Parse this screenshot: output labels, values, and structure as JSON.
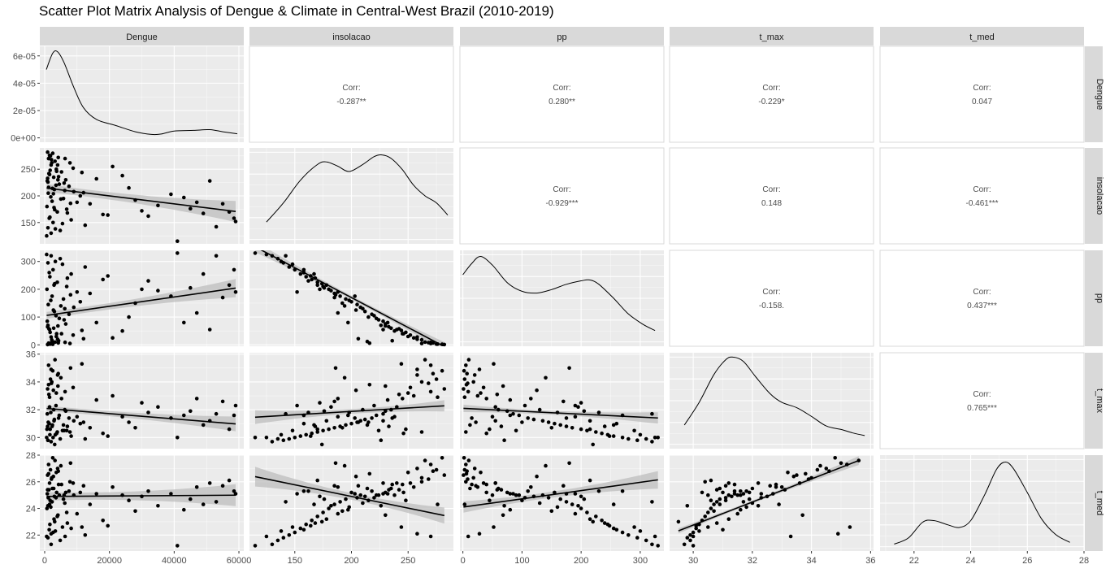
{
  "title": "Scatter Plot Matrix Analysis of Dengue & Climate in Central-West Brazil (2010-2019)",
  "colors": {
    "panel_bg": "#EBEBEB",
    "strip_bg": "#D9D9D9",
    "points": "#000000",
    "ribbon": "#BEBEBE"
  },
  "chart_data": {
    "type": "scatter-matrix",
    "variables": [
      "Dengue",
      "insolacao",
      "pp",
      "t_max",
      "t_med"
    ],
    "axes": [
      {
        "name": "Dengue",
        "range": [
          -1500,
          61500
        ],
        "ticks": [
          0,
          20000,
          40000,
          60000
        ],
        "tick_labels": [
          "0",
          "20000",
          "40000",
          "60000"
        ],
        "density_axis": {
          "range": [
            -3.2e-06,
            6.7e-05
          ],
          "ticks": [
            0,
            2e-05,
            4e-05,
            6e-05
          ],
          "tick_labels": [
            "0e+00",
            "2e-05",
            "4e-05",
            "6e-05"
          ]
        }
      },
      {
        "name": "insolacao",
        "range": [
          110,
          290
        ],
        "ticks": [
          150,
          200,
          250
        ],
        "tick_labels": [
          "150",
          "200",
          "250"
        ]
      },
      {
        "name": "pp",
        "range": [
          -5,
          340
        ],
        "ticks": [
          0,
          100,
          200,
          300
        ],
        "tick_labels": [
          "0",
          "100",
          "200",
          "300"
        ]
      },
      {
        "name": "t_max",
        "range": [
          29.2,
          36.1
        ],
        "ticks": [
          30,
          32,
          34,
          36
        ],
        "tick_labels": [
          "30",
          "32",
          "34",
          "36"
        ]
      },
      {
        "name": "t_med",
        "range": [
          20.8,
          28
        ],
        "ticks": [
          22,
          24,
          26,
          28
        ],
        "tick_labels": [
          "22",
          "24",
          "26",
          "28"
        ]
      }
    ],
    "correlations": [
      {
        "row": "Dengue",
        "col": "insolacao",
        "label": "Corr:",
        "value": "-0.287**"
      },
      {
        "row": "Dengue",
        "col": "pp",
        "label": "Corr:",
        "value": "0.280**"
      },
      {
        "row": "Dengue",
        "col": "t_max",
        "label": "Corr:",
        "value": "-0.229*"
      },
      {
        "row": "Dengue",
        "col": "t_med",
        "label": "Corr:",
        "value": "0.047"
      },
      {
        "row": "insolacao",
        "col": "pp",
        "label": "Corr:",
        "value": "-0.929***"
      },
      {
        "row": "insolacao",
        "col": "t_max",
        "label": "Corr:",
        "value": "0.148"
      },
      {
        "row": "insolacao",
        "col": "t_med",
        "label": "Corr:",
        "value": "-0.461***"
      },
      {
        "row": "pp",
        "col": "t_max",
        "label": "Corr:",
        "value": "-0.158."
      },
      {
        "row": "pp",
        "col": "t_med",
        "label": "Corr:",
        "value": "0.437***"
      },
      {
        "row": "t_max",
        "col": "t_med",
        "label": "Corr:",
        "value": "0.765***"
      }
    ],
    "densities": {
      "Dengue": [
        [
          500,
          5e-05
        ],
        [
          2500,
          6.2e-05
        ],
        [
          4000,
          6.3e-05
        ],
        [
          6000,
          5.5e-05
        ],
        [
          9000,
          3.7e-05
        ],
        [
          12000,
          2.2e-05
        ],
        [
          16000,
          1.35e-05
        ],
        [
          22000,
          9e-06
        ],
        [
          28000,
          4.5e-06
        ],
        [
          33000,
          2.5e-06
        ],
        [
          36000,
          2.8e-06
        ],
        [
          40000,
          5e-06
        ],
        [
          46000,
          5.5e-06
        ],
        [
          51000,
          6e-06
        ],
        [
          55000,
          4.5e-06
        ],
        [
          59500,
          3e-06
        ]
      ],
      "insolacao": [
        [
          125,
          0.2
        ],
        [
          140,
          0.42
        ],
        [
          155,
          0.68
        ],
        [
          170,
          0.86
        ],
        [
          178,
          0.89
        ],
        [
          188,
          0.84
        ],
        [
          198,
          0.78
        ],
        [
          210,
          0.86
        ],
        [
          220,
          0.95
        ],
        [
          227,
          0.97
        ],
        [
          235,
          0.93
        ],
        [
          245,
          0.8
        ],
        [
          255,
          0.62
        ],
        [
          265,
          0.5
        ],
        [
          275,
          0.42
        ],
        [
          285,
          0.28
        ]
      ],
      "pp": [
        [
          0,
          0.77
        ],
        [
          15,
          0.9
        ],
        [
          30,
          0.98
        ],
        [
          50,
          0.88
        ],
        [
          75,
          0.68
        ],
        [
          100,
          0.58
        ],
        [
          125,
          0.56
        ],
        [
          150,
          0.6
        ],
        [
          175,
          0.66
        ],
        [
          200,
          0.7
        ],
        [
          215,
          0.71
        ],
        [
          230,
          0.66
        ],
        [
          255,
          0.5
        ],
        [
          280,
          0.32
        ],
        [
          305,
          0.2
        ],
        [
          325,
          0.13
        ]
      ],
      "t_max": [
        [
          29.7,
          0.22
        ],
        [
          30.2,
          0.48
        ],
        [
          30.7,
          0.8
        ],
        [
          31.1,
          0.97
        ],
        [
          31.35,
          1.0
        ],
        [
          31.7,
          0.95
        ],
        [
          32.1,
          0.78
        ],
        [
          32.6,
          0.58
        ],
        [
          33.0,
          0.48
        ],
        [
          33.5,
          0.42
        ],
        [
          34.0,
          0.32
        ],
        [
          34.5,
          0.21
        ],
        [
          35.0,
          0.17
        ],
        [
          35.4,
          0.13
        ],
        [
          35.8,
          0.1
        ]
      ],
      "t_med": [
        [
          21.3,
          0.03
        ],
        [
          21.8,
          0.1
        ],
        [
          22.3,
          0.28
        ],
        [
          22.7,
          0.3
        ],
        [
          23.2,
          0.25
        ],
        [
          23.6,
          0.22
        ],
        [
          24.0,
          0.3
        ],
        [
          24.5,
          0.6
        ],
        [
          24.9,
          0.88
        ],
        [
          25.2,
          0.97
        ],
        [
          25.5,
          0.9
        ],
        [
          26.0,
          0.62
        ],
        [
          26.5,
          0.32
        ],
        [
          27.0,
          0.14
        ],
        [
          27.5,
          0.05
        ]
      ]
    },
    "observations": [
      {
        "Dengue": 1200,
        "insolacao": 270,
        "pp": 5,
        "t_max": 35.2,
        "t_med": 27.3
      },
      {
        "Dengue": 2500,
        "insolacao": 280,
        "pp": 2,
        "t_max": 34.8,
        "t_med": 27.8
      },
      {
        "Dengue": 3200,
        "insolacao": 265,
        "pp": 10,
        "t_max": 35.6,
        "t_med": 27.6
      },
      {
        "Dengue": 1800,
        "insolacao": 275,
        "pp": 3,
        "t_max": 34.2,
        "t_med": 26.9
      },
      {
        "Dengue": 4000,
        "insolacao": 258,
        "pp": 20,
        "t_max": 34.5,
        "t_med": 27.0
      },
      {
        "Dengue": 900,
        "insolacao": 282,
        "pp": 1,
        "t_max": 33.5,
        "t_med": 26.5
      },
      {
        "Dengue": 2100,
        "insolacao": 268,
        "pp": 8,
        "t_max": 33.9,
        "t_med": 26.2
      },
      {
        "Dengue": 3600,
        "insolacao": 250,
        "pp": 30,
        "t_max": 33.2,
        "t_med": 26.7
      },
      {
        "Dengue": 5200,
        "insolacao": 245,
        "pp": 40,
        "t_max": 32.8,
        "t_med": 25.8
      },
      {
        "Dengue": 1500,
        "insolacao": 240,
        "pp": 55,
        "t_max": 32.2,
        "t_med": 25.9
      },
      {
        "Dengue": 2800,
        "insolacao": 235,
        "pp": 60,
        "t_max": 32.0,
        "t_med": 25.5
      },
      {
        "Dengue": 6500,
        "insolacao": 230,
        "pp": 75,
        "t_max": 31.9,
        "t_med": 25.2
      },
      {
        "Dengue": 800,
        "insolacao": 228,
        "pp": 85,
        "t_max": 31.7,
        "t_med": 25.1
      },
      {
        "Dengue": 4500,
        "insolacao": 222,
        "pp": 95,
        "t_max": 31.6,
        "t_med": 25.0
      },
      {
        "Dengue": 7500,
        "insolacao": 218,
        "pp": 110,
        "t_max": 31.4,
        "t_med": 25.3
      },
      {
        "Dengue": 3000,
        "insolacao": 212,
        "pp": 120,
        "t_max": 31.3,
        "t_med": 24.9
      },
      {
        "Dengue": 9000,
        "insolacao": 208,
        "pp": 135,
        "t_max": 31.2,
        "t_med": 25.0
      },
      {
        "Dengue": 1100,
        "insolacao": 205,
        "pp": 145,
        "t_max": 31.1,
        "t_med": 24.8
      },
      {
        "Dengue": 11000,
        "insolacao": 200,
        "pp": 155,
        "t_max": 31.0,
        "t_med": 25.2
      },
      {
        "Dengue": 5800,
        "insolacao": 195,
        "pp": 165,
        "t_max": 30.9,
        "t_med": 24.7
      },
      {
        "Dengue": 2300,
        "insolacao": 190,
        "pp": 175,
        "t_max": 30.8,
        "t_med": 24.5
      },
      {
        "Dengue": 14000,
        "insolacao": 185,
        "pp": 185,
        "t_max": 30.7,
        "t_med": 24.3
      },
      {
        "Dengue": 700,
        "insolacao": 180,
        "pp": 200,
        "t_max": 30.6,
        "t_med": 24.0
      },
      {
        "Dengue": 6800,
        "insolacao": 175,
        "pp": 210,
        "t_max": 30.5,
        "t_med": 23.7
      },
      {
        "Dengue": 3900,
        "insolacao": 170,
        "pp": 225,
        "t_max": 30.4,
        "t_med": 23.4
      },
      {
        "Dengue": 18000,
        "insolacao": 165,
        "pp": 235,
        "t_max": 30.3,
        "t_med": 23.1
      },
      {
        "Dengue": 1600,
        "insolacao": 160,
        "pp": 245,
        "t_max": 30.2,
        "t_med": 22.8
      },
      {
        "Dengue": 8200,
        "insolacao": 155,
        "pp": 255,
        "t_max": 30.1,
        "t_med": 22.5
      },
      {
        "Dengue": 2600,
        "insolacao": 150,
        "pp": 270,
        "t_max": 30.0,
        "t_med": 22.2
      },
      {
        "Dengue": 12500,
        "insolacao": 145,
        "pp": 280,
        "t_max": 29.9,
        "t_med": 22.0
      },
      {
        "Dengue": 1000,
        "insolacao": 140,
        "pp": 295,
        "t_max": 29.8,
        "t_med": 21.8
      },
      {
        "Dengue": 4800,
        "insolacao": 135,
        "pp": 310,
        "t_max": 29.9,
        "t_med": 21.6
      },
      {
        "Dengue": 2000,
        "insolacao": 130,
        "pp": 320,
        "t_max": 29.7,
        "t_med": 21.3
      },
      {
        "Dengue": 600,
        "insolacao": 125,
        "pp": 325,
        "t_max": 30.0,
        "t_med": 21.9
      },
      {
        "Dengue": 3300,
        "insolacao": 138,
        "pp": 300,
        "t_max": 30.2,
        "t_med": 22.3
      },
      {
        "Dengue": 5500,
        "insolacao": 148,
        "pp": 290,
        "t_max": 30.5,
        "t_med": 22.6
      },
      {
        "Dengue": 1400,
        "insolacao": 158,
        "pp": 260,
        "t_max": 31.0,
        "t_med": 22.4
      },
      {
        "Dengue": 7000,
        "insolacao": 168,
        "pp": 240,
        "t_max": 30.8,
        "t_med": 22.9
      },
      {
        "Dengue": 2900,
        "insolacao": 178,
        "pp": 215,
        "t_max": 31.2,
        "t_med": 23.2
      },
      {
        "Dengue": 10000,
        "insolacao": 188,
        "pp": 190,
        "t_max": 31.5,
        "t_med": 23.6
      },
      {
        "Dengue": 1900,
        "insolacao": 198,
        "pp": 160,
        "t_max": 31.8,
        "t_med": 24.1
      },
      {
        "Dengue": 6200,
        "insolacao": 210,
        "pp": 130,
        "t_max": 32.0,
        "t_med": 24.4
      },
      {
        "Dengue": 3500,
        "insolacao": 220,
        "pp": 105,
        "t_max": 32.3,
        "t_med": 24.8
      },
      {
        "Dengue": 16000,
        "insolacao": 232,
        "pp": 80,
        "t_max": 32.7,
        "t_med": 25.1
      },
      {
        "Dengue": 1300,
        "insolacao": 242,
        "pp": 58,
        "t_max": 33.1,
        "t_med": 25.4
      },
      {
        "Dengue": 8800,
        "insolacao": 252,
        "pp": 35,
        "t_max": 33.6,
        "t_med": 25.9
      },
      {
        "Dengue": 2200,
        "insolacao": 262,
        "pp": 18,
        "t_max": 34.0,
        "t_med": 26.3
      },
      {
        "Dengue": 4200,
        "insolacao": 272,
        "pp": 7,
        "t_max": 34.6,
        "t_med": 26.8
      },
      {
        "Dengue": 21000,
        "insolacao": 255,
        "pp": 25,
        "t_max": 33.0,
        "t_med": 25.6
      },
      {
        "Dengue": 24000,
        "insolacao": 238,
        "pp": 50,
        "t_max": 31.5,
        "t_med": 25.0
      },
      {
        "Dengue": 26000,
        "insolacao": 215,
        "pp": 100,
        "t_max": 31.1,
        "t_med": 24.6
      },
      {
        "Dengue": 28000,
        "insolacao": 192,
        "pp": 150,
        "t_max": 30.7,
        "t_med": 23.8
      },
      {
        "Dengue": 30000,
        "insolacao": 172,
        "pp": 200,
        "t_max": 32.5,
        "t_med": 24.9
      },
      {
        "Dengue": 32000,
        "insolacao": 162,
        "pp": 230,
        "t_max": 31.8,
        "t_med": 25.3
      },
      {
        "Dengue": 35000,
        "insolacao": 182,
        "pp": 195,
        "t_max": 32.2,
        "t_med": 24.2
      },
      {
        "Dengue": 39000,
        "insolacao": 203,
        "pp": 175,
        "t_max": 31.4,
        "t_med": 25.1
      },
      {
        "Dengue": 41000,
        "insolacao": 115,
        "pp": 330,
        "t_max": 30.0,
        "t_med": 21.2
      },
      {
        "Dengue": 43000,
        "insolacao": 197,
        "pp": 80,
        "t_max": 31.6,
        "t_med": 23.9
      },
      {
        "Dengue": 45000,
        "insolacao": 176,
        "pp": 205,
        "t_max": 31.9,
        "t_med": 24.7
      },
      {
        "Dengue": 47000,
        "insolacao": 188,
        "pp": 115,
        "t_max": 32.8,
        "t_med": 25.6
      },
      {
        "Dengue": 49000,
        "insolacao": 167,
        "pp": 255,
        "t_max": 30.9,
        "t_med": 24.3
      },
      {
        "Dengue": 51000,
        "insolacao": 228,
        "pp": 55,
        "t_max": 31.2,
        "t_med": 25.9
      },
      {
        "Dengue": 53000,
        "insolacao": 142,
        "pp": 320,
        "t_max": 31.7,
        "t_med": 24.5
      },
      {
        "Dengue": 55000,
        "insolacao": 185,
        "pp": 170,
        "t_max": 32.6,
        "t_med": 25.7
      },
      {
        "Dengue": 57000,
        "insolacao": 170,
        "pp": 215,
        "t_max": 30.6,
        "t_med": 26.1
      },
      {
        "Dengue": 58500,
        "insolacao": 158,
        "pp": 270,
        "t_max": 31.6,
        "t_med": 25.3
      },
      {
        "Dengue": 59000,
        "insolacao": 152,
        "pp": 190,
        "t_max": 32.3,
        "t_med": 25.1
      },
      {
        "Dengue": 3700,
        "insolacao": 246,
        "pp": 40,
        "t_max": 30.3,
        "t_med": 25.2
      },
      {
        "Dengue": 900,
        "insolacao": 233,
        "pp": 65,
        "t_max": 30.8,
        "t_med": 25.4
      },
      {
        "Dengue": 6000,
        "insolacao": 224,
        "pp": 90,
        "t_max": 30.5,
        "t_med": 25.0
      },
      {
        "Dengue": 2400,
        "insolacao": 214,
        "pp": 12,
        "t_max": 30.9,
        "t_med": 25.5
      },
      {
        "Dengue": 12000,
        "insolacao": 206,
        "pp": 22,
        "t_max": 31.1,
        "t_med": 25.7
      },
      {
        "Dengue": 1700,
        "insolacao": 248,
        "pp": 45,
        "t_max": 30.6,
        "t_med": 24.6
      },
      {
        "Dengue": 4300,
        "insolacao": 236,
        "pp": 15,
        "t_max": 31.4,
        "t_med": 25.8
      },
      {
        "Dengue": 7800,
        "insolacao": 262,
        "pp": 5,
        "t_max": 30.4,
        "t_med": 26.0
      },
      {
        "Dengue": 1000,
        "insolacao": 226,
        "pp": 70,
        "t_max": 29.8,
        "t_med": 24.2
      },
      {
        "Dengue": 2700,
        "insolacao": 204,
        "pp": 125,
        "t_max": 33.4,
        "t_med": 26.4
      },
      {
        "Dengue": 5000,
        "insolacao": 194,
        "pp": 140,
        "t_max": 34.3,
        "t_med": 27.2
      },
      {
        "Dengue": 1200,
        "insolacao": 216,
        "pp": 6,
        "t_max": 33.8,
        "t_med": 26.6
      },
      {
        "Dengue": 8000,
        "insolacao": 186,
        "pp": 180,
        "t_max": 35.0,
        "t_med": 27.4
      },
      {
        "Dengue": 3100,
        "insolacao": 174,
        "pp": 220,
        "t_max": 29.5,
        "t_med": 23.0
      },
      {
        "Dengue": 19500,
        "insolacao": 164,
        "pp": 248,
        "t_max": 30.1,
        "t_med": 22.7
      },
      {
        "Dengue": 1500,
        "insolacao": 276,
        "pp": 3,
        "t_max": 32.9,
        "t_med": 24.3
      },
      {
        "Dengue": 6300,
        "insolacao": 270,
        "pp": 9,
        "t_max": 33.3,
        "t_med": 21.9
      },
      {
        "Dengue": 2000,
        "insolacao": 258,
        "pp": 28,
        "t_max": 34.9,
        "t_med": 22.1
      },
      {
        "Dengue": 11500,
        "insolacao": 244,
        "pp": 52,
        "t_max": 35.3,
        "t_med": 22.6
      },
      {
        "Dengue": 4100,
        "insolacao": 230,
        "pp": 68,
        "t_max": 33.7,
        "t_med": 23.5
      }
    ],
    "regressions": {
      "insolacao~Dengue": [
        215,
        -0.00075,
        12
      ],
      "pp~Dengue": [
        105,
        0.00168,
        20
      ],
      "t_max~Dengue": [
        32.1,
        -1.9e-05,
        0.32
      ],
      "t_med~Dengue": [
        24.9,
        1.6e-06,
        0.5
      ],
      "pp~insolacao": [
        600,
        -2.15,
        12
      ],
      "t_max~insolacao": [
        30.9,
        0.0049,
        0.3
      ],
      "t_med~insolacao": [
        28.4,
        -0.0175,
        0.45
      ],
      "t_max~pp": [
        32.1,
        -0.0021,
        0.25
      ],
      "t_med~pp": [
        24.1,
        0.0062,
        0.4
      ],
      "t_med~t_max": [
        -3.2,
        0.865,
        0.2
      ]
    }
  }
}
